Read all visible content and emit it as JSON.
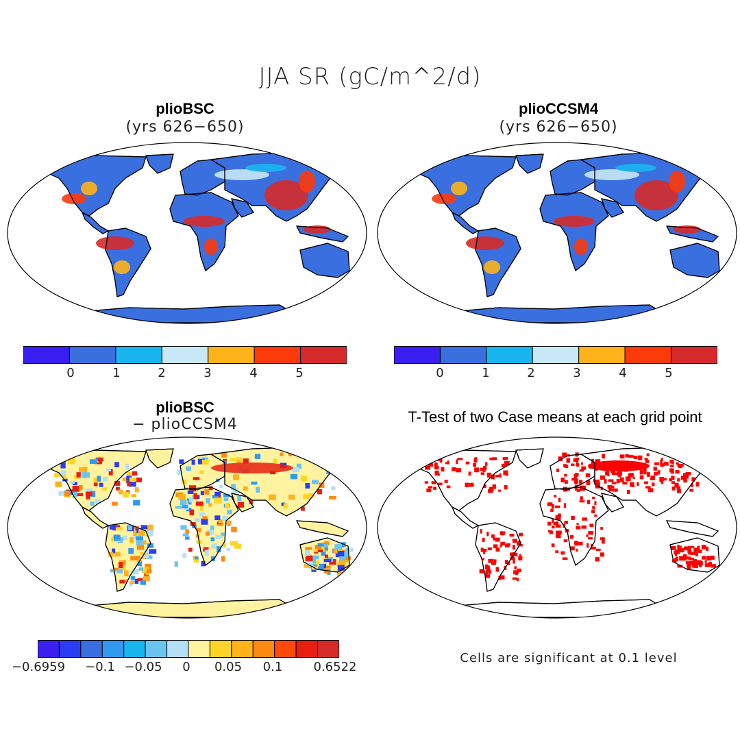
{
  "figure": {
    "title": "JJA SR (gC/m^2/d)"
  },
  "panels": [
    {
      "id": "a",
      "title": "plioBSC",
      "subtitle": "(yrs 626−650)",
      "palette": "abs"
    },
    {
      "id": "b",
      "title": "plioCCSM4",
      "subtitle": "(yrs 626−650)",
      "palette": "abs"
    },
    {
      "id": "c",
      "title": "plioBSC",
      "subtitle": "− plioCCSM4",
      "palette": "diff"
    },
    {
      "id": "d",
      "title": "T-Test of two Case means at each grid point",
      "subtitle": "",
      "palette": "sig"
    }
  ],
  "colorbars": {
    "abs": {
      "colors": [
        "#3a1ff0",
        "#3a6fe0",
        "#19b5ef",
        "#c8e8f6",
        "#fdb319",
        "#fd3a0a",
        "#d62a2a"
      ],
      "labels": [
        "0",
        "1",
        "2",
        "3",
        "4",
        "5"
      ]
    },
    "diff": {
      "colors": [
        "#3d1ff0",
        "#2a3df0",
        "#3a6fe0",
        "#2f9af0",
        "#19b5ef",
        "#6bc3f0",
        "#b4dff4",
        "#fff3a0",
        "#fdd526",
        "#fdb319",
        "#fd8a10",
        "#fd4a0a",
        "#e81f0f",
        "#d62a2a"
      ],
      "labels": [
        "−0.6959",
        "−0.1",
        "−0.05",
        "0",
        "0.05",
        "0.1",
        "0.6522"
      ]
    }
  },
  "significance_note": "Cells are significant at 0.1 level"
}
